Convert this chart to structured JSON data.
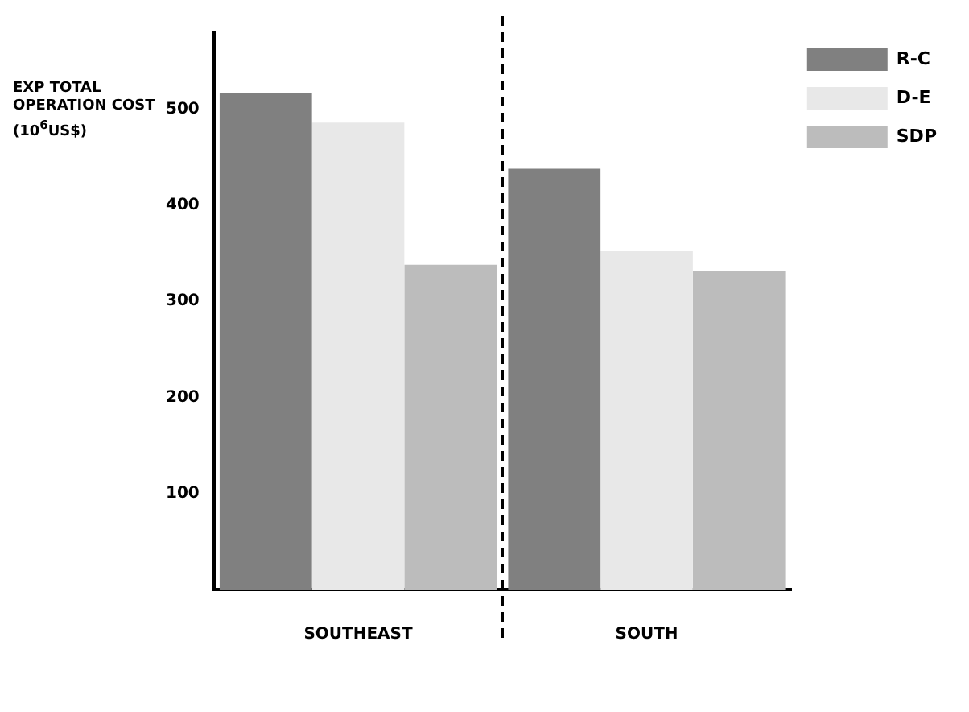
{
  "chart_data": {
    "type": "bar",
    "ylabel": "EXP TOTAL OPERATION COST (10$^{6}$US$)",
    "categories": [
      "SOUTHEAST",
      "SOUTH"
    ],
    "series": [
      {
        "name": "R-C",
        "color": "#808080",
        "values": [
          517,
          438
        ]
      },
      {
        "name": "D-E",
        "color": "#e8e8e8",
        "values": [
          486,
          352
        ]
      },
      {
        "name": "SDP",
        "color": "#bcbcbc",
        "values": [
          338,
          332
        ]
      }
    ],
    "ylim": [
      0,
      580
    ],
    "yticks": [
      100,
      200,
      300,
      400,
      500
    ],
    "grid": false,
    "legend": "top right"
  }
}
